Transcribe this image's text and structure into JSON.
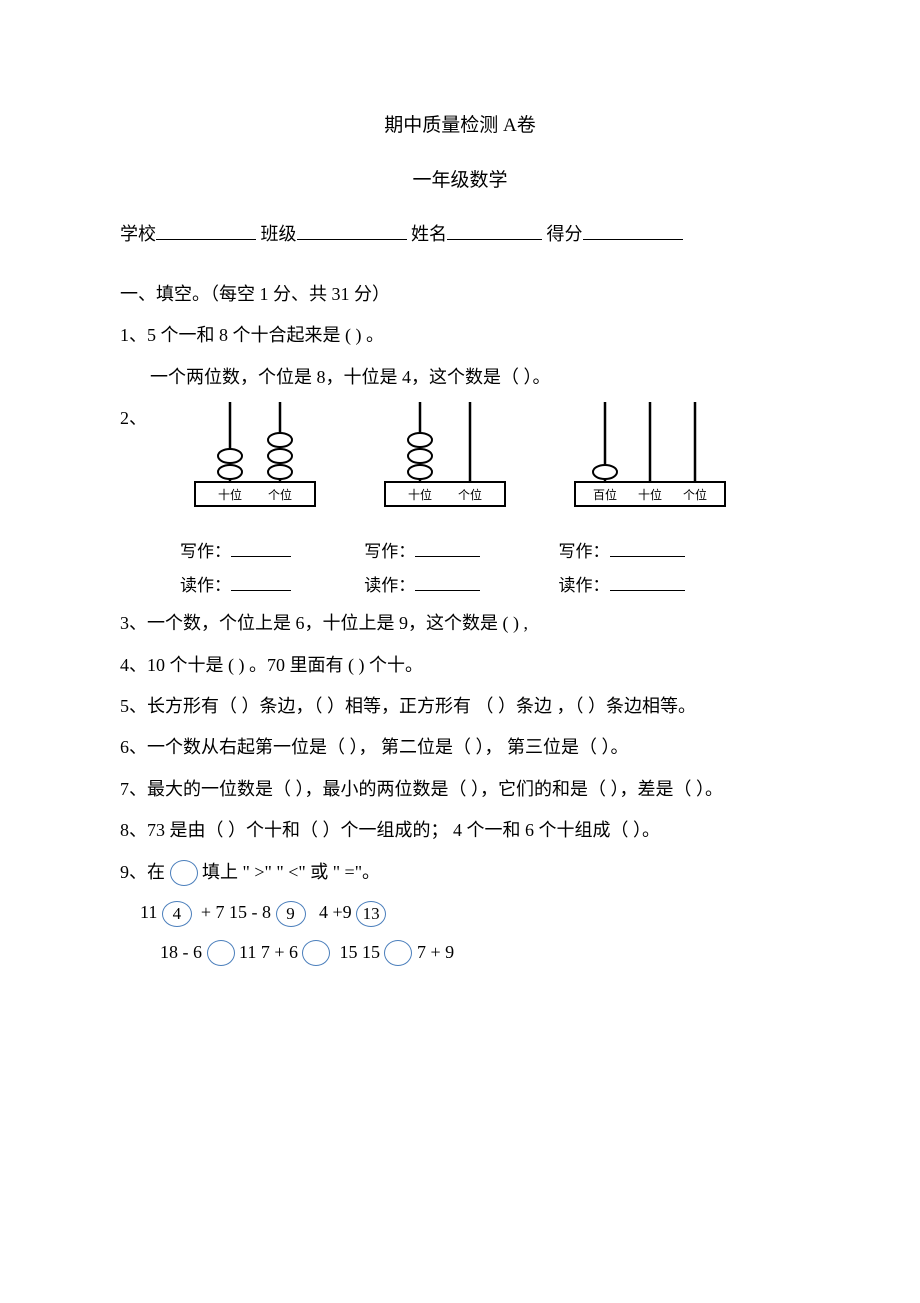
{
  "title": "期中质量检测  A卷",
  "subtitle": "一年级数学",
  "info": {
    "school": "学校",
    "class": "班级",
    "name": "姓名",
    "score": "得分"
  },
  "section1_header": "一、填空。（每空 1 分、共 31 分）",
  "q1_a": "1、5 个一和 8 个十合起来是 (     )    。",
  "q1_b": "一个两位数，个位是   8，十位是  4，这个数是（        ）。",
  "q2_prefix": "2、",
  "abacus": [
    {
      "labels": [
        "十位",
        "个位"
      ],
      "beads": [
        2,
        3
      ],
      "cols": 2
    },
    {
      "labels": [
        "十位",
        "个位"
      ],
      "beads": [
        3,
        0
      ],
      "cols": 2
    },
    {
      "labels": [
        "百位",
        "十位",
        "个位"
      ],
      "beads": [
        1,
        0,
        0
      ],
      "cols": 3
    }
  ],
  "write_label": "写作：",
  "read_label": "读作：",
  "q3": "3、一个数，个位上是   6，十位上是  9，这个数是 (     )     ,",
  "q4": "4、10 个十是 (     )    。70 里面有 (     )     个十。",
  "q5": "5、长方形有（       ）条边，（        ）相等，正方形有  （        ）条边 ，（        ）条边相等。",
  "q6": "6、一个数从右起第一位是（          ）， 第二位是（         ），  第三位是（           ）。",
  "q7": "7、最大的一位数是（         ），最小的两位数是（        ），它们的和是（        ），差是（          ）。",
  "q8": "8、73 是由（       ）个十和（       ）个一组成的；  4 个一和  6 个十组成（         ）。",
  "q9_header": "9、在",
  "q9_tail": "填上 \" >\"  \" <\" 或 \" =\"。",
  "q9_line1": {
    "a": "11",
    "c1": "4",
    "b": "+ 7     15     - 8",
    "c2": "9",
    "c": "4        +9",
    "c3": "13"
  },
  "q9_line2": {
    "a": "18 - 6",
    "b": "11       7 + 6",
    "c": "15            15",
    "d": "7 + 9"
  },
  "colors": {
    "circle": "#4a7ebb",
    "text": "#000000",
    "bg": "#ffffff"
  }
}
